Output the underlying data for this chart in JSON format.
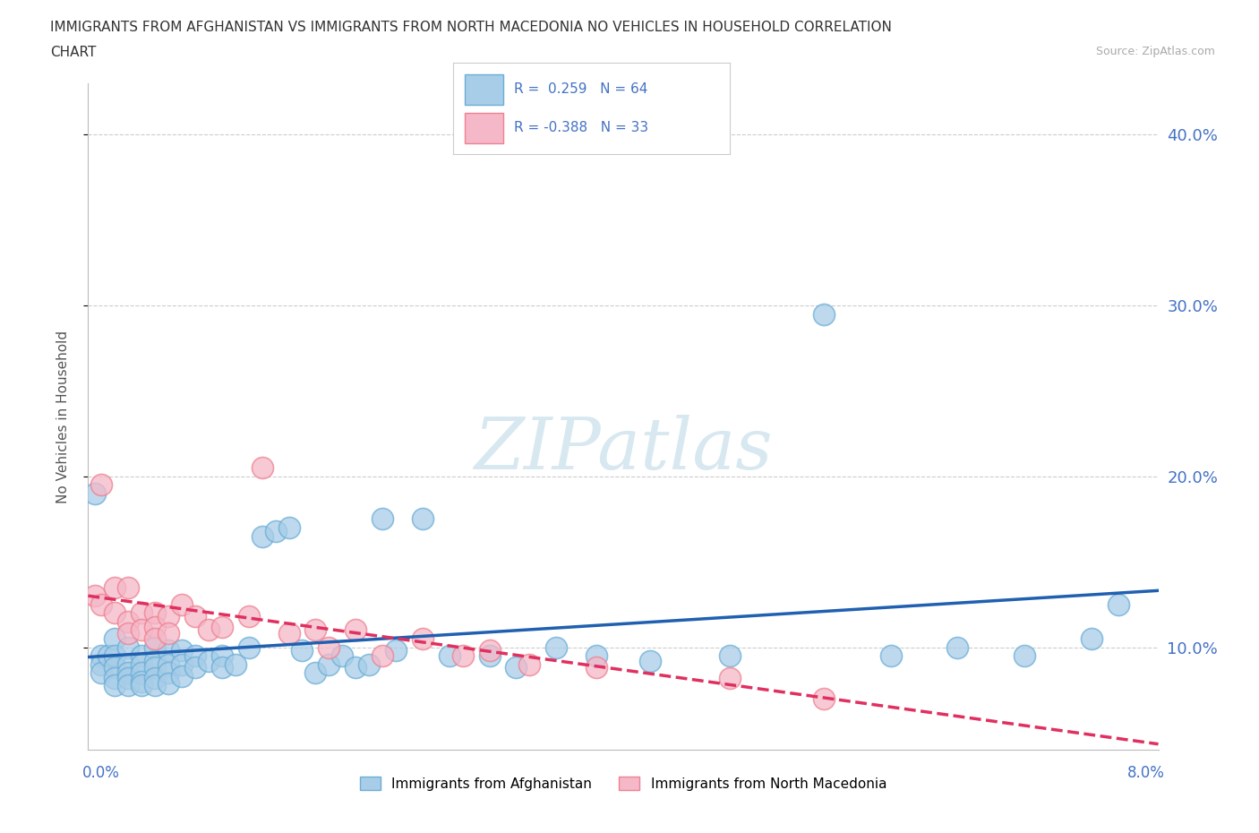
{
  "title_line1": "IMMIGRANTS FROM AFGHANISTAN VS IMMIGRANTS FROM NORTH MACEDONIA NO VEHICLES IN HOUSEHOLD CORRELATION",
  "title_line2": "CHART",
  "source": "Source: ZipAtlas.com",
  "ylabel": "No Vehicles in Household",
  "ytick_labels": [
    "10.0%",
    "20.0%",
    "30.0%",
    "40.0%"
  ],
  "ytick_values": [
    0.1,
    0.2,
    0.3,
    0.4
  ],
  "xlim": [
    0.0,
    0.08
  ],
  "ylim": [
    0.04,
    0.43
  ],
  "legend_R_afghanistan": "R =  0.259",
  "legend_N_afghanistan": "N = 64",
  "legend_R_n_macedonia": "R = -0.388",
  "legend_N_n_macedonia": "N = 33",
  "legend_label_afghanistan": "Immigrants from Afghanistan",
  "legend_label_n_macedonia": "Immigrants from North Macedonia",
  "color_afghanistan": "#a8cde8",
  "color_n_macedonia": "#f4b8c8",
  "edge_afghanistan": "#6baed6",
  "edge_n_macedonia": "#f08090",
  "trendline_color_afghanistan": "#2060b0",
  "trendline_color_n_macedonia": "#e03060",
  "watermark_color": "#d8e8f0",
  "background_color": "#ffffff",
  "afghanistan_x": [
    0.0005,
    0.001,
    0.001,
    0.001,
    0.0015,
    0.002,
    0.002,
    0.002,
    0.002,
    0.002,
    0.003,
    0.003,
    0.003,
    0.003,
    0.003,
    0.004,
    0.004,
    0.004,
    0.004,
    0.004,
    0.005,
    0.005,
    0.005,
    0.005,
    0.005,
    0.006,
    0.006,
    0.006,
    0.006,
    0.007,
    0.007,
    0.007,
    0.008,
    0.008,
    0.009,
    0.01,
    0.01,
    0.011,
    0.012,
    0.013,
    0.014,
    0.015,
    0.016,
    0.017,
    0.018,
    0.019,
    0.02,
    0.021,
    0.022,
    0.023,
    0.025,
    0.027,
    0.03,
    0.032,
    0.035,
    0.038,
    0.042,
    0.048,
    0.055,
    0.06,
    0.065,
    0.07,
    0.075,
    0.077
  ],
  "afghanistan_y": [
    0.19,
    0.095,
    0.09,
    0.085,
    0.095,
    0.105,
    0.095,
    0.088,
    0.082,
    0.078,
    0.1,
    0.09,
    0.085,
    0.082,
    0.078,
    0.095,
    0.09,
    0.085,
    0.08,
    0.078,
    0.1,
    0.092,
    0.088,
    0.082,
    0.078,
    0.098,
    0.09,
    0.085,
    0.079,
    0.098,
    0.09,
    0.083,
    0.095,
    0.088,
    0.092,
    0.095,
    0.088,
    0.09,
    0.1,
    0.165,
    0.168,
    0.17,
    0.098,
    0.085,
    0.09,
    0.095,
    0.088,
    0.09,
    0.175,
    0.098,
    0.175,
    0.095,
    0.095,
    0.088,
    0.1,
    0.095,
    0.092,
    0.095,
    0.295,
    0.095,
    0.1,
    0.095,
    0.105,
    0.125
  ],
  "n_macedonia_x": [
    0.0005,
    0.001,
    0.001,
    0.002,
    0.002,
    0.003,
    0.003,
    0.003,
    0.004,
    0.004,
    0.005,
    0.005,
    0.005,
    0.006,
    0.006,
    0.007,
    0.008,
    0.009,
    0.01,
    0.012,
    0.013,
    0.015,
    0.017,
    0.018,
    0.02,
    0.022,
    0.025,
    0.028,
    0.03,
    0.033,
    0.038,
    0.048,
    0.055
  ],
  "n_macedonia_y": [
    0.13,
    0.195,
    0.125,
    0.135,
    0.12,
    0.135,
    0.115,
    0.108,
    0.12,
    0.11,
    0.12,
    0.112,
    0.105,
    0.118,
    0.108,
    0.125,
    0.118,
    0.11,
    0.112,
    0.118,
    0.205,
    0.108,
    0.11,
    0.1,
    0.11,
    0.095,
    0.105,
    0.095,
    0.098,
    0.09,
    0.088,
    0.082,
    0.07
  ]
}
